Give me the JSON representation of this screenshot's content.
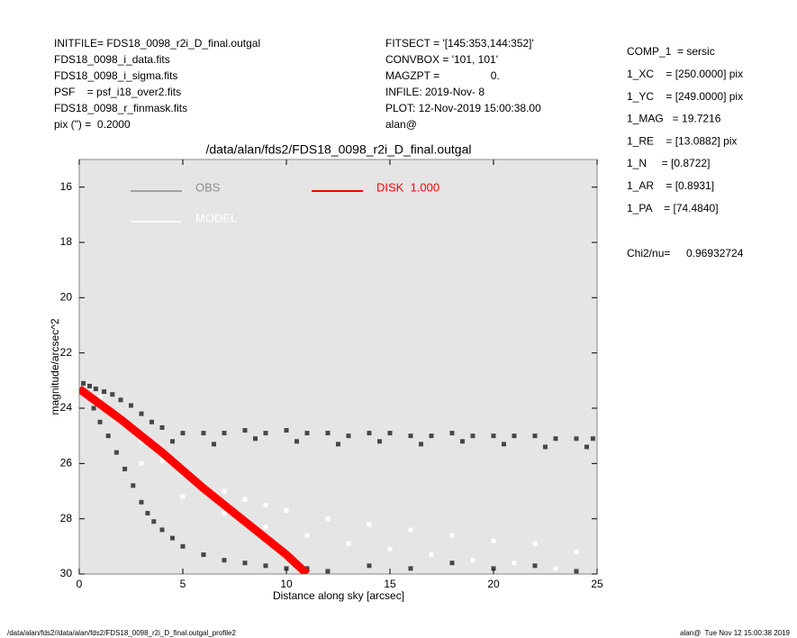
{
  "header": {
    "left": [
      "INITFILE= FDS18_0098_r2i_D_final.outgal",
      "FDS18_0098_i_data.fits",
      "FDS18_0098_i_sigma.fits",
      "PSF    = psf_i18_over2.fits",
      "FDS18_0098_r_finmask.fits",
      "pix (\") =  0.2000"
    ],
    "middle": [
      "FITSECT = '[145:353,144:352]'",
      "CONVBOX = '101, 101'",
      "MAGZPT =                 0.",
      "INFILE: 2019-Nov- 8",
      "PLOT: 12-Nov-2019 15:00:38.00",
      "alan@"
    ],
    "right": [
      "COMP_1  = sersic",
      "1_XC    = [250.0000] pix",
      "1_YC    = [249.0000] pix",
      "1_MAG   = 19.7216",
      "1_RE    = [13.0882] pix",
      "1_N     = [0.8722]",
      "1_AR    = [0.8931]",
      "1_PA    = [74.4840]"
    ],
    "chi_label": "Chi2/nu=",
    "chi_value": "0.96932724"
  },
  "footer": {
    "left": "/data/alan/fds2//data/alan/fds2/FDS18_0098_r2i_D_final.outgal_profile2",
    "right": "alan@  Tue Nov 12 15:00:38 2019"
  },
  "chart_data": {
    "type": "scatter",
    "title": "/data/alan/fds2/FDS18_0098_r2i_D_final.outgal",
    "xlabel": "Distance along sky [arcsec]",
    "ylabel": "magnitude/arcsec^2",
    "xlim": [
      0,
      25
    ],
    "ylim": [
      30,
      15
    ],
    "xticks": [
      0,
      5,
      10,
      15,
      20,
      25
    ],
    "yticks": [
      16,
      18,
      20,
      22,
      24,
      26,
      28,
      30
    ],
    "grid": false,
    "series": [
      {
        "name": "OBS",
        "color": "#474747",
        "x": [
          0.2,
          0.5,
          0.8,
          1.2,
          1.6,
          2.0,
          2.5,
          3,
          3.5,
          4,
          5,
          6,
          7,
          8,
          9,
          10,
          11,
          12,
          13,
          14,
          15,
          16,
          17,
          18,
          19,
          20,
          21,
          22,
          23,
          24,
          24.8,
          4.5,
          6.5,
          8.5,
          10.5,
          12.5,
          14.5,
          16.5,
          18.5,
          20.5,
          22.5,
          24.5,
          0.3,
          0.7,
          1.0,
          1.4,
          1.8,
          2.2,
          2.6,
          3.0,
          3.3,
          3.6,
          4,
          4.5,
          5,
          6,
          7,
          8,
          9,
          10,
          11,
          12,
          14,
          16,
          18,
          20,
          22,
          24
        ],
        "values": [
          23.1,
          23.2,
          23.3,
          23.4,
          23.5,
          23.7,
          23.9,
          24.2,
          24.5,
          24.7,
          24.9,
          24.9,
          24.9,
          24.8,
          24.9,
          24.8,
          24.9,
          24.9,
          25.0,
          24.9,
          24.9,
          25.0,
          25.0,
          24.9,
          25.0,
          25.0,
          25.0,
          25.0,
          25.1,
          25.1,
          25.1,
          25.2,
          25.3,
          25.1,
          25.2,
          25.3,
          25.2,
          25.3,
          25.2,
          25.3,
          25.4,
          25.4,
          23.5,
          24.0,
          24.5,
          25.0,
          25.6,
          26.2,
          26.8,
          27.4,
          27.8,
          28.1,
          28.4,
          28.7,
          29.0,
          29.3,
          29.5,
          29.6,
          29.7,
          29.8,
          29.8,
          29.9,
          29.7,
          29.8,
          29.6,
          29.8,
          29.7,
          29.9
        ]
      },
      {
        "name": "MODEL",
        "color": "#ffffff",
        "x": [
          1,
          2,
          3,
          4,
          5,
          6,
          7,
          8,
          9,
          10,
          12,
          14,
          16,
          18,
          20,
          22,
          24,
          3,
          5,
          7,
          9,
          11,
          13,
          15,
          17,
          19,
          21,
          23
        ],
        "values": [
          23.6,
          24.3,
          25.2,
          25.9,
          26.4,
          26.8,
          27.0,
          27.3,
          27.5,
          27.7,
          28,
          28.2,
          28.4,
          28.6,
          28.8,
          28.9,
          29.2,
          26,
          27.2,
          27.8,
          28.3,
          28.6,
          28.9,
          29.1,
          29.3,
          29.5,
          29.6,
          29.8
        ]
      },
      {
        "name": "DISK  1.000",
        "color": "#ff0000",
        "style": "line",
        "x": [
          0,
          2,
          4,
          6,
          8,
          10,
          11
        ],
        "values": [
          23.3,
          24.4,
          25.6,
          26.9,
          28.1,
          29.3,
          30
        ]
      }
    ]
  }
}
